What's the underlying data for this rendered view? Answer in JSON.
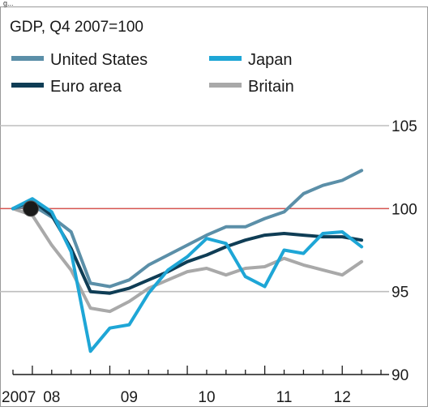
{
  "header_fragment": "g...",
  "chart_data": {
    "type": "line",
    "title": "GDP, Q4 2007=100",
    "x_tick_labels": [
      "2007",
      "08",
      "09",
      "10",
      "11",
      "12"
    ],
    "x_tick_positions": [
      2007.75,
      2008.25,
      2009.25,
      2010.25,
      2011.25,
      2012.0
    ],
    "xlim": [
      2007.75,
      2012.5
    ],
    "ylim": [
      90,
      105
    ],
    "y_ticks": [
      90,
      95,
      100,
      105
    ],
    "reference_line": 100,
    "grid": true,
    "legend_position": "top",
    "colors": {
      "united_states": "#5b8fa8",
      "japan": "#1ea6d6",
      "euro_area": "#0f3d55",
      "britain": "#a9a9a9",
      "reference": "#d9534f",
      "grid": "#bdbdbd",
      "axis": "#1a1a1a"
    },
    "x": [
      2007.75,
      2008.0,
      2008.25,
      2008.5,
      2008.75,
      2009.0,
      2009.25,
      2009.5,
      2009.75,
      2010.0,
      2010.25,
      2010.5,
      2010.75,
      2011.0,
      2011.25,
      2011.5,
      2011.75,
      2012.0,
      2012.25
    ],
    "series": [
      {
        "name": "United States",
        "color_key": "united_states",
        "values": [
          100.0,
          100.2,
          99.5,
          98.6,
          95.5,
          95.3,
          95.7,
          96.6,
          97.2,
          97.8,
          98.4,
          98.9,
          98.9,
          99.4,
          99.8,
          100.9,
          101.4,
          101.7,
          102.3
        ]
      },
      {
        "name": "Japan",
        "color_key": "japan",
        "values": [
          100.0,
          100.6,
          99.8,
          97.4,
          91.4,
          92.8,
          93.0,
          94.9,
          96.3,
          97.1,
          98.2,
          97.9,
          95.9,
          95.3,
          97.5,
          97.3,
          98.5,
          98.6,
          97.7
        ]
      },
      {
        "name": "Euro area",
        "color_key": "euro_area",
        "values": [
          100.0,
          100.5,
          99.6,
          97.6,
          95.0,
          94.9,
          95.2,
          95.7,
          96.2,
          96.8,
          97.2,
          97.7,
          98.1,
          98.4,
          98.5,
          98.4,
          98.3,
          98.3,
          98.1
        ]
      },
      {
        "name": "Britain",
        "color_key": "britain",
        "values": [
          100.0,
          99.6,
          97.8,
          96.3,
          94.0,
          93.8,
          94.4,
          95.2,
          95.7,
          96.2,
          96.4,
          96.0,
          96.4,
          96.5,
          97.0,
          96.6,
          96.3,
          96.0,
          96.8
        ]
      }
    ],
    "start_marker": {
      "x": 2007.75,
      "y": 100
    }
  }
}
